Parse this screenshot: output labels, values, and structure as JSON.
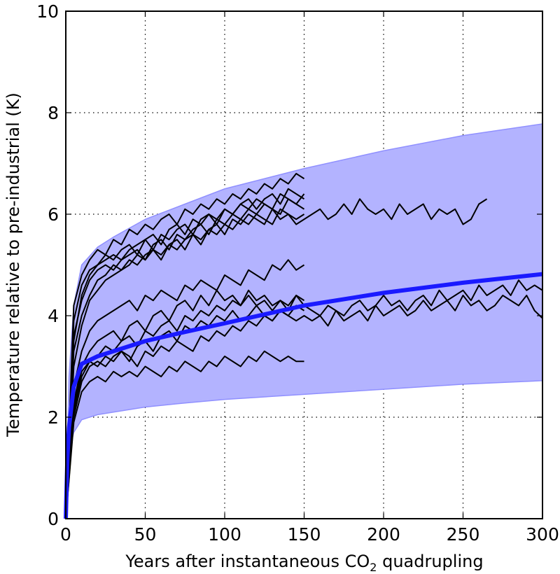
{
  "chart_data": {
    "type": "line",
    "title": "",
    "xlabel": "Years after instantaneous CO",
    "xlabel_subscript": "2",
    "xlabel_suffix": " quadrupling",
    "ylabel": "Temperature relative to pre-industrial (K)",
    "xlim": [
      0,
      300
    ],
    "ylim": [
      0,
      10
    ],
    "xticks": [
      0,
      50,
      100,
      150,
      200,
      250,
      300
    ],
    "yticks": [
      0,
      2,
      4,
      6,
      8,
      10
    ],
    "grid": true,
    "colors": {
      "band_fill": "#b3b3ff",
      "band_edge": "#9090ff",
      "mean_line": "#1a1aff",
      "model_lines": "#000000"
    },
    "band": {
      "x": [
        0,
        1,
        2,
        5,
        10,
        20,
        30,
        50,
        75,
        100,
        150,
        200,
        250,
        300
      ],
      "upper": [
        0,
        1.5,
        2.8,
        4.2,
        5.0,
        5.35,
        5.55,
        5.9,
        6.2,
        6.5,
        6.9,
        7.25,
        7.55,
        7.78
      ],
      "lower": [
        0,
        0.9,
        1.3,
        1.7,
        1.95,
        2.05,
        2.1,
        2.2,
        2.28,
        2.35,
        2.45,
        2.55,
        2.65,
        2.72
      ]
    },
    "mean": {
      "x": [
        0,
        1,
        2,
        5,
        10,
        20,
        30,
        50,
        75,
        100,
        150,
        200,
        250,
        300
      ],
      "y": [
        0,
        1.2,
        1.8,
        2.6,
        3.05,
        3.2,
        3.3,
        3.5,
        3.68,
        3.85,
        4.2,
        4.45,
        4.65,
        4.82
      ]
    },
    "model_x_step_years": 5,
    "models": [
      {
        "y": [
          0,
          4.2,
          4.8,
          5.1,
          5.3,
          5.2,
          5.5,
          5.4,
          5.7,
          5.6,
          5.8,
          5.7,
          5.9,
          6.0,
          5.8,
          6.1,
          6.0,
          6.2,
          6.1,
          6.3,
          6.2,
          6.4,
          6.3,
          6.5,
          6.4,
          6.6,
          6.5,
          6.7,
          6.6,
          6.8,
          6.7
        ]
      },
      {
        "y": [
          0,
          3.9,
          4.6,
          4.9,
          5.0,
          5.2,
          5.1,
          5.3,
          5.4,
          5.2,
          5.5,
          5.6,
          5.4,
          5.7,
          5.8,
          5.6,
          5.9,
          5.8,
          6.0,
          5.9,
          6.1,
          6.0,
          6.2,
          6.3,
          6.1,
          6.3,
          6.4,
          6.2,
          6.5,
          6.4,
          6.3
        ]
      },
      {
        "y": [
          0,
          3.6,
          4.3,
          4.7,
          4.9,
          5.0,
          4.9,
          5.1,
          5.2,
          5.3,
          5.1,
          5.4,
          5.5,
          5.3,
          5.6,
          5.5,
          5.7,
          5.8,
          5.6,
          5.9,
          5.8,
          6.0,
          5.9,
          6.1,
          6.0,
          6.2,
          6.1,
          6.0,
          6.3,
          6.2,
          6.1
        ]
      },
      {
        "y": [
          0,
          3.3,
          4.0,
          4.4,
          4.7,
          4.8,
          5.0,
          4.9,
          5.1,
          5.0,
          5.2,
          5.3,
          5.1,
          5.4,
          5.3,
          5.5,
          5.6,
          5.4,
          5.7,
          5.6,
          5.8,
          5.7,
          5.9,
          5.8,
          6.0,
          5.9,
          5.8,
          6.1,
          6.0,
          5.9,
          6.0
        ]
      },
      {
        "y": [
          0,
          3.0,
          3.8,
          4.3,
          4.5,
          4.7,
          4.8,
          4.9,
          5.0,
          5.2,
          5.1,
          5.3,
          5.2,
          5.4,
          5.5,
          5.3,
          5.6,
          5.5,
          5.7,
          5.8,
          5.6,
          5.9,
          5.8,
          6.0,
          5.9,
          5.8,
          6.1,
          5.9,
          6.0,
          5.8,
          5.9,
          6.0,
          6.1,
          5.9,
          6.0,
          6.2,
          6.0,
          6.3,
          6.1,
          6.0,
          6.1,
          5.9,
          6.2,
          6.0,
          6.1,
          6.2,
          5.9,
          6.1,
          6.0,
          6.1,
          5.8,
          5.9,
          6.2,
          6.3
        ]
      },
      {
        "y": [
          0,
          3.5,
          4.4,
          4.8,
          5.0,
          5.1,
          5.2,
          5.1,
          5.3,
          5.4,
          5.5,
          5.3,
          5.6,
          5.5,
          5.7,
          5.8,
          5.6,
          5.9,
          6.0,
          5.8,
          6.1,
          6.0,
          6.2,
          6.1,
          6.3,
          6.2,
          6.1,
          6.4,
          6.3,
          6.2,
          6.4
        ]
      },
      {
        "y": [
          0,
          2.6,
          3.3,
          3.7,
          3.9,
          4.0,
          4.1,
          4.2,
          4.3,
          4.1,
          4.4,
          4.3,
          4.5,
          4.4,
          4.3,
          4.6,
          4.5,
          4.7,
          4.6,
          4.5,
          4.8,
          4.7,
          4.6,
          4.9,
          4.8,
          4.7,
          5.0,
          4.9,
          5.1,
          4.9,
          5.0
        ]
      },
      {
        "y": [
          0,
          2.2,
          2.9,
          3.1,
          3.2,
          3.4,
          3.3,
          3.5,
          3.6,
          3.4,
          3.7,
          3.6,
          3.8,
          3.9,
          3.7,
          4.0,
          3.9,
          4.1,
          4.0,
          4.2,
          4.1,
          4.3,
          4.2,
          4.4,
          4.2,
          4.3,
          4.1,
          4.3,
          4.2,
          4.4,
          4.2,
          4.1,
          4.0,
          4.2,
          4.1,
          4.0,
          4.2,
          4.3,
          4.1,
          4.2,
          4.4,
          4.2,
          4.3,
          4.1,
          4.3,
          4.4,
          4.2,
          4.5,
          4.3,
          4.4,
          4.5,
          4.3,
          4.6,
          4.4,
          4.5,
          4.6,
          4.4,
          4.7,
          4.5,
          4.6,
          4.5
        ]
      },
      {
        "y": [
          0,
          2.0,
          2.7,
          3.0,
          3.1,
          3.0,
          3.2,
          3.3,
          3.1,
          3.4,
          3.5,
          3.3,
          3.6,
          3.7,
          3.5,
          3.8,
          3.7,
          3.9,
          3.8,
          4.0,
          3.9,
          4.1,
          3.9,
          4.0,
          4.2,
          4.0,
          3.9,
          4.1,
          4.0,
          3.9,
          4.0,
          3.9,
          4.0,
          3.8,
          4.1,
          3.9,
          4.0,
          4.1,
          3.9,
          4.2,
          4.0,
          4.1,
          4.2,
          4.0,
          4.1,
          4.3,
          4.1,
          4.2,
          4.3,
          4.1,
          4.4,
          4.2,
          4.3,
          4.1,
          4.2,
          4.4,
          4.3,
          4.2,
          4.4,
          4.1,
          3.95
        ]
      },
      {
        "y": [
          0,
          2.3,
          3.0,
          3.3,
          3.5,
          3.6,
          3.7,
          3.5,
          3.8,
          3.9,
          3.7,
          4.0,
          4.1,
          3.9,
          4.2,
          4.3,
          4.1,
          4.4,
          4.2,
          4.5,
          4.3,
          4.4,
          4.2,
          4.5,
          4.3,
          4.4,
          4.2,
          4.3,
          4.1,
          4.4,
          4.3
        ]
      },
      {
        "y": [
          0,
          1.9,
          2.5,
          2.7,
          2.8,
          2.7,
          2.9,
          2.8,
          2.9,
          2.8,
          3.0,
          2.9,
          2.8,
          3.0,
          2.9,
          3.1,
          3.0,
          2.9,
          3.1,
          3.0,
          3.2,
          3.1,
          3.0,
          3.2,
          3.1,
          3.3,
          3.2,
          3.1,
          3.2,
          3.1,
          3.1
        ]
      },
      {
        "y": [
          0,
          2.1,
          2.8,
          3.1,
          3.0,
          3.2,
          3.1,
          3.3,
          3.2,
          3.0,
          3.3,
          3.2,
          3.4,
          3.3,
          3.5,
          3.4,
          3.3,
          3.6,
          3.5,
          3.7,
          3.6,
          3.8,
          3.7,
          3.9,
          3.8,
          4.0,
          3.9,
          4.1,
          4.0,
          4.2,
          4.1
        ]
      }
    ]
  }
}
